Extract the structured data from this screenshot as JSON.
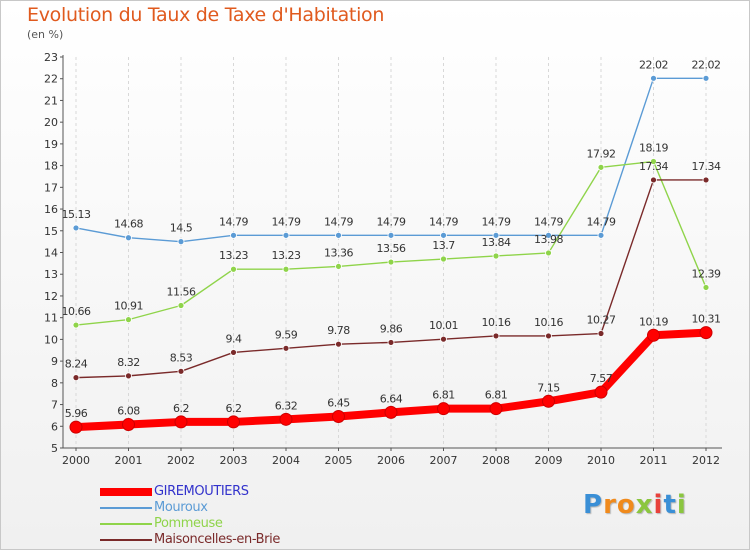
{
  "title": "Evolution du Taux de Taxe d'Habitation",
  "unit": "(en %)",
  "logo": {
    "letters": [
      {
        "ch": "P",
        "color": "#3a8fd6"
      },
      {
        "ch": "r",
        "color": "#f08a1c"
      },
      {
        "ch": "o",
        "color": "#f08a1c"
      },
      {
        "ch": "x",
        "color": "#8bc63f"
      },
      {
        "ch": "i",
        "color": "#e8413c"
      },
      {
        "ch": "t",
        "color": "#3a8fd6"
      },
      {
        "ch": "i",
        "color": "#8bc63f"
      }
    ]
  },
  "chart_data": {
    "type": "line",
    "title": "Evolution du Taux de Taxe d'Habitation",
    "ylabel": "(en %)",
    "x": [
      "2000",
      "2001",
      "2002",
      "2003",
      "2004",
      "2005",
      "2006",
      "2007",
      "2008",
      "2009",
      "2010",
      "2011",
      "2012"
    ],
    "ylim": [
      5,
      23
    ],
    "yticks": [
      5,
      6,
      7,
      8,
      9,
      10,
      11,
      12,
      13,
      14,
      15,
      16,
      17,
      18,
      19,
      20,
      21,
      22,
      23
    ],
    "grid": "vertical dashed",
    "legend_position": "bottom-left",
    "series": [
      {
        "name": "GIREMOUTIERS",
        "color": "#ff0000",
        "label_color": "#3333cc",
        "values": [
          5.96,
          6.08,
          6.2,
          6.2,
          6.32,
          6.45,
          6.64,
          6.81,
          6.81,
          7.15,
          7.57,
          10.19,
          10.31
        ],
        "labels": [
          "5.96",
          "6.08",
          "6.2",
          "6.2",
          "6.32",
          "6.45",
          "6.64",
          "6.81",
          "6.81",
          "7.15",
          "7.57",
          "10.19",
          "10.31"
        ]
      },
      {
        "name": "Mouroux",
        "color": "#5b9bd5",
        "label_color": "#5b9bd5",
        "values": [
          15.13,
          14.68,
          14.5,
          14.79,
          14.79,
          14.79,
          14.79,
          14.79,
          14.79,
          14.79,
          14.79,
          22.02,
          22.02
        ],
        "labels": [
          "15.13",
          "14.68",
          "14.5",
          "14.79",
          "14.79",
          "14.79",
          "14.79",
          "14.79",
          "14.79",
          "14.79",
          "14.79",
          "22.02",
          "22.02"
        ]
      },
      {
        "name": "Pommeuse",
        "color": "#8fd44a",
        "label_color": "#8fd44a",
        "values": [
          10.66,
          10.91,
          11.56,
          13.23,
          13.23,
          13.36,
          13.56,
          13.7,
          13.84,
          13.98,
          17.92,
          18.19,
          12.39
        ],
        "labels": [
          "10.66",
          "10.91",
          "11.56",
          "13.23",
          "13.23",
          "13.36",
          "13.56",
          "13.7",
          "13.84",
          "13.98",
          "17.92",
          "18.19",
          "12.39"
        ]
      },
      {
        "name": "Maisoncelles-en-Brie",
        "color": "#7a2a2a",
        "label_color": "#7a2a2a",
        "values": [
          8.24,
          8.32,
          8.53,
          9.4,
          9.59,
          9.78,
          9.86,
          10.01,
          10.16,
          10.16,
          10.27,
          17.34,
          17.34
        ],
        "labels": [
          "8.24",
          "8.32",
          "8.53",
          "9.4",
          "9.59",
          "9.78",
          "9.86",
          "10.01",
          "10.16",
          "10.16",
          "10.27",
          "17.34",
          "17.34"
        ]
      }
    ]
  }
}
